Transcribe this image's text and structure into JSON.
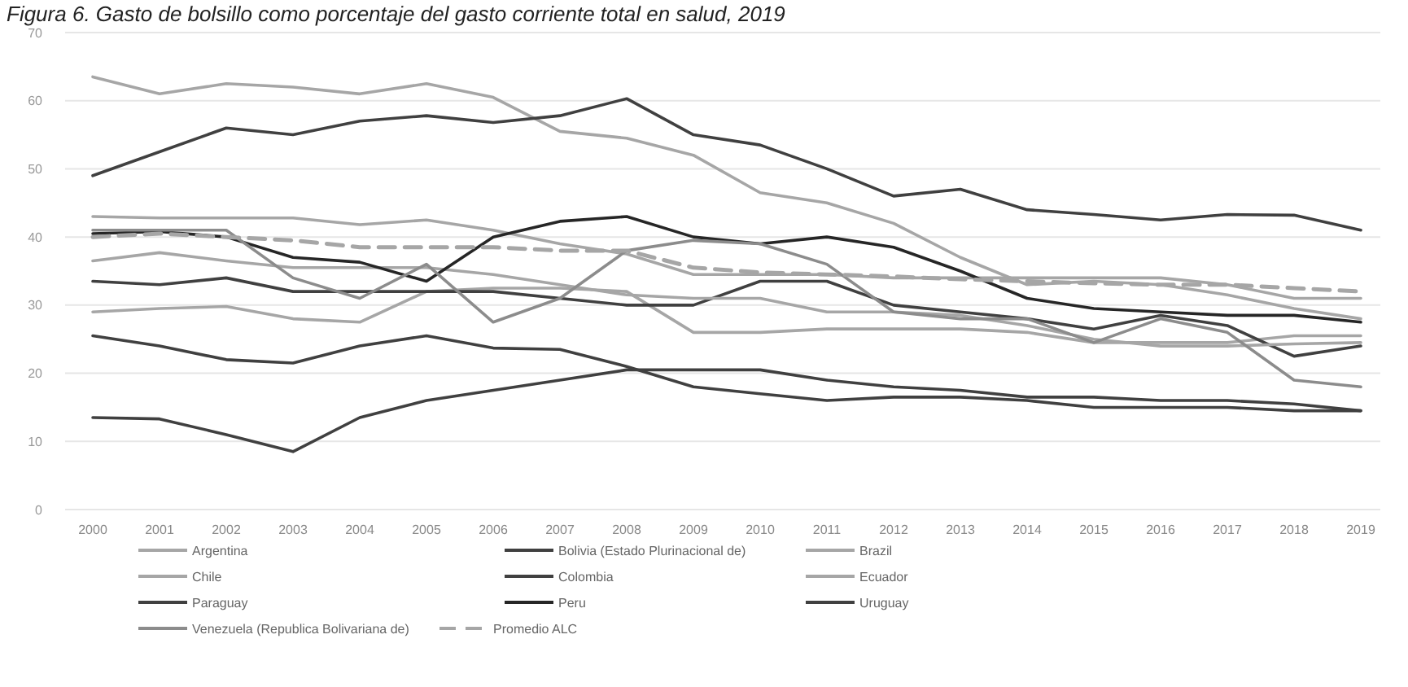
{
  "chart_data": {
    "type": "line",
    "title": "Figura 6. Gasto de bolsillo como porcentaje del gasto corriente total en salud, 2019",
    "categories": [
      "2000",
      "2001",
      "2002",
      "2003",
      "2004",
      "2005",
      "2006",
      "2007",
      "2008",
      "2009",
      "2010",
      "2011",
      "2012",
      "2013",
      "2014",
      "2015",
      "2016",
      "2017",
      "2018",
      "2019"
    ],
    "ylim": [
      0,
      70
    ],
    "yticks": [
      0,
      10,
      20,
      30,
      40,
      50,
      60,
      70
    ],
    "grid": "y",
    "legend": "bottom",
    "marker": "none",
    "series": [
      {
        "name": "Argentina",
        "color": "#a6a6a6",
        "values": [
          29,
          29.5,
          29.8,
          28,
          27.5,
          32,
          32.5,
          32.5,
          32,
          26,
          26,
          26.5,
          26.5,
          26.5,
          26,
          24.5,
          24.5,
          24.5,
          25.5,
          25.5
        ]
      },
      {
        "name": "Bolivia (Estado Plurinacional de)",
        "color": "#404040",
        "values": [
          33.5,
          33,
          34,
          32,
          32,
          32,
          32,
          31,
          30,
          30,
          33.5,
          33.5,
          30,
          29,
          28,
          26.5,
          28.5,
          27,
          22.5,
          24
        ]
      },
      {
        "name": "Brazil",
        "color": "#a6a6a6",
        "values": [
          43,
          42.8,
          42.8,
          42.8,
          41.8,
          42.5,
          41,
          39,
          37.5,
          34.5,
          34.5,
          34.5,
          34,
          34,
          34,
          34,
          34,
          33,
          31,
          31
        ]
      },
      {
        "name": "Chile",
        "color": "#a6a6a6",
        "values": [
          36.5,
          37.7,
          36.5,
          35.5,
          35.5,
          35.5,
          34.5,
          33,
          31.5,
          31,
          31,
          29,
          29,
          28.5,
          27,
          25,
          24,
          24,
          24.3,
          24.5
        ]
      },
      {
        "name": "Colombia",
        "color": "#404040",
        "values": [
          13.5,
          13.3,
          11,
          8.5,
          13.5,
          16,
          17.5,
          19,
          20.5,
          20.5,
          20.5,
          19,
          18,
          17.5,
          16.5,
          16.5,
          16,
          16,
          15.5,
          14.5
        ]
      },
      {
        "name": "Ecuador",
        "color": "#a6a6a6",
        "values": [
          63.5,
          61,
          62.5,
          62,
          61,
          62.5,
          60.5,
          55.5,
          54.5,
          52,
          46.5,
          45,
          42,
          37,
          33,
          33.5,
          33,
          31.5,
          29.5,
          28
        ]
      },
      {
        "name": "Paraguay",
        "color": "#404040",
        "values": [
          49,
          52.5,
          56,
          55,
          57,
          57.8,
          56.8,
          57.8,
          60.3,
          55,
          53.5,
          50,
          46,
          47,
          44,
          43.3,
          42.5,
          43.3,
          43.2,
          41
        ]
      },
      {
        "name": "Peru",
        "color": "#262626",
        "values": [
          40.5,
          40.8,
          40,
          37,
          36.3,
          33.5,
          40,
          42.3,
          43,
          40,
          39,
          40,
          38.5,
          35,
          31,
          29.5,
          29,
          28.5,
          28.5,
          27.5
        ]
      },
      {
        "name": "Uruguay",
        "color": "#404040",
        "values": [
          25.5,
          24,
          22,
          21.5,
          24,
          25.5,
          23.7,
          23.5,
          21,
          18,
          17,
          16,
          16.5,
          16.5,
          16,
          15,
          15,
          15,
          14.5,
          14.5
        ]
      },
      {
        "name": "Venezuela (Republica Bolivariana de)",
        "color": "#8c8c8c",
        "values": [
          41,
          41,
          41,
          34,
          31,
          36,
          27.5,
          31,
          38,
          39.5,
          39,
          36,
          29,
          28,
          28,
          24.5,
          28,
          26,
          19,
          18
        ]
      },
      {
        "name": "Promedio ALC",
        "color": "#a6a6a6",
        "line_style": "dashed",
        "values": [
          40,
          40.5,
          40,
          39.5,
          38.5,
          38.5,
          38.5,
          38,
          38,
          35.5,
          34.8,
          34.5,
          34.2,
          33.8,
          33.5,
          33.2,
          33,
          33,
          32.5,
          32
        ]
      }
    ]
  }
}
